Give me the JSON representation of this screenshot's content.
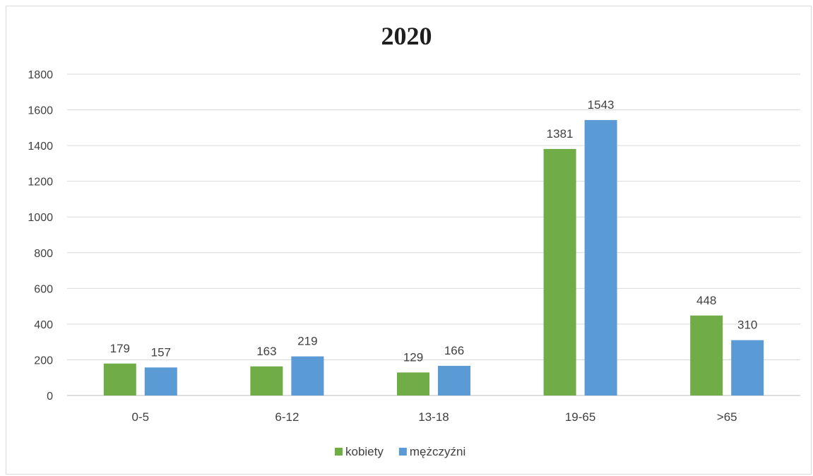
{
  "chart_data": {
    "type": "bar",
    "title": "2020",
    "categories": [
      "0-5",
      "6-12",
      "13-18",
      "19-65",
      ">65"
    ],
    "series": [
      {
        "name": "kobiety",
        "color": "#70ad47",
        "values": [
          179,
          163,
          129,
          1381,
          448
        ]
      },
      {
        "name": "mężczyźni",
        "color": "#5b9bd5",
        "values": [
          157,
          219,
          166,
          1543,
          310
        ]
      }
    ],
    "yticks": [
      "0",
      "200",
      "400",
      "600",
      "800",
      "1000",
      "1200",
      "1400",
      "1600",
      "1800"
    ],
    "ylim": [
      0,
      1800
    ],
    "grid": true,
    "legend_position": "bottom"
  }
}
